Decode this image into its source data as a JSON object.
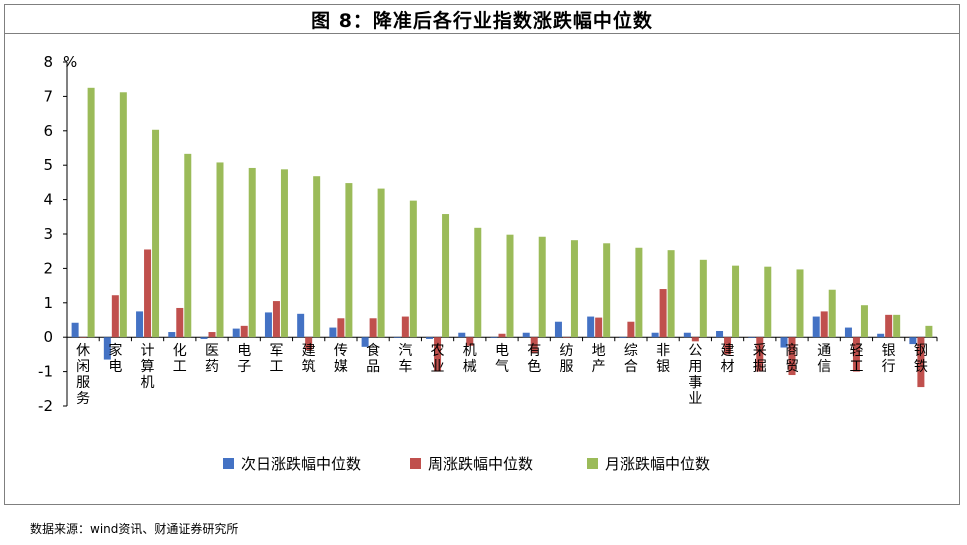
{
  "title": "图 8：降准后各行业指数涨跌幅中位数",
  "source": "数据来源：wind资讯、财通证券研究所",
  "chart_data": {
    "type": "bar",
    "ylabel": "%",
    "ylim": [
      -2,
      8
    ],
    "yticks": [
      "8",
      "7",
      "6",
      "5",
      "4",
      "3",
      "2",
      "1",
      "0",
      "-1",
      "-2"
    ],
    "legend_position": "bottom",
    "categories": [
      "休闲服务",
      "家电",
      "计算机",
      "化工",
      "医药",
      "电子",
      "军工",
      "建筑",
      "传媒",
      "食品",
      "汽车",
      "农业",
      "机械",
      "电气",
      "有色",
      "纺服",
      "地产",
      "综合",
      "非银",
      "公用事业",
      "建材",
      "采掘",
      "商贸",
      "通信",
      "轻工",
      "银行",
      "钢铁"
    ],
    "series": [
      {
        "name": "次日涨跌幅中位数",
        "color": "#4472c4",
        "values": [
          0.42,
          -0.65,
          0.75,
          0.15,
          -0.05,
          0.25,
          0.72,
          0.68,
          0.28,
          -0.28,
          -0.02,
          -0.05,
          0.13,
          -0.02,
          0.13,
          0.45,
          0.6,
          -0.02,
          0.13,
          0.13,
          0.18,
          -0.02,
          -0.3,
          0.6,
          0.28,
          0.1,
          -0.2
        ]
      },
      {
        "name": "周涨跌幅中位数",
        "color": "#c0504d",
        "values": [
          0.0,
          1.22,
          2.55,
          0.85,
          0.15,
          0.33,
          1.05,
          -0.38,
          0.55,
          0.55,
          0.6,
          -1.0,
          -0.25,
          0.1,
          -0.45,
          0.0,
          0.57,
          0.45,
          1.4,
          -0.12,
          -0.5,
          -1.0,
          -1.1,
          0.75,
          -1.0,
          0.65,
          -1.45
        ]
      },
      {
        "name": "月涨跌幅中位数",
        "color": "#9bbb59",
        "values": [
          7.25,
          7.12,
          6.03,
          5.33,
          5.08,
          4.92,
          4.88,
          4.68,
          4.48,
          4.32,
          3.97,
          3.58,
          3.18,
          2.98,
          2.92,
          2.82,
          2.73,
          2.6,
          2.53,
          2.25,
          2.08,
          2.05,
          1.97,
          1.38,
          0.93,
          0.65,
          0.33
        ]
      }
    ]
  }
}
